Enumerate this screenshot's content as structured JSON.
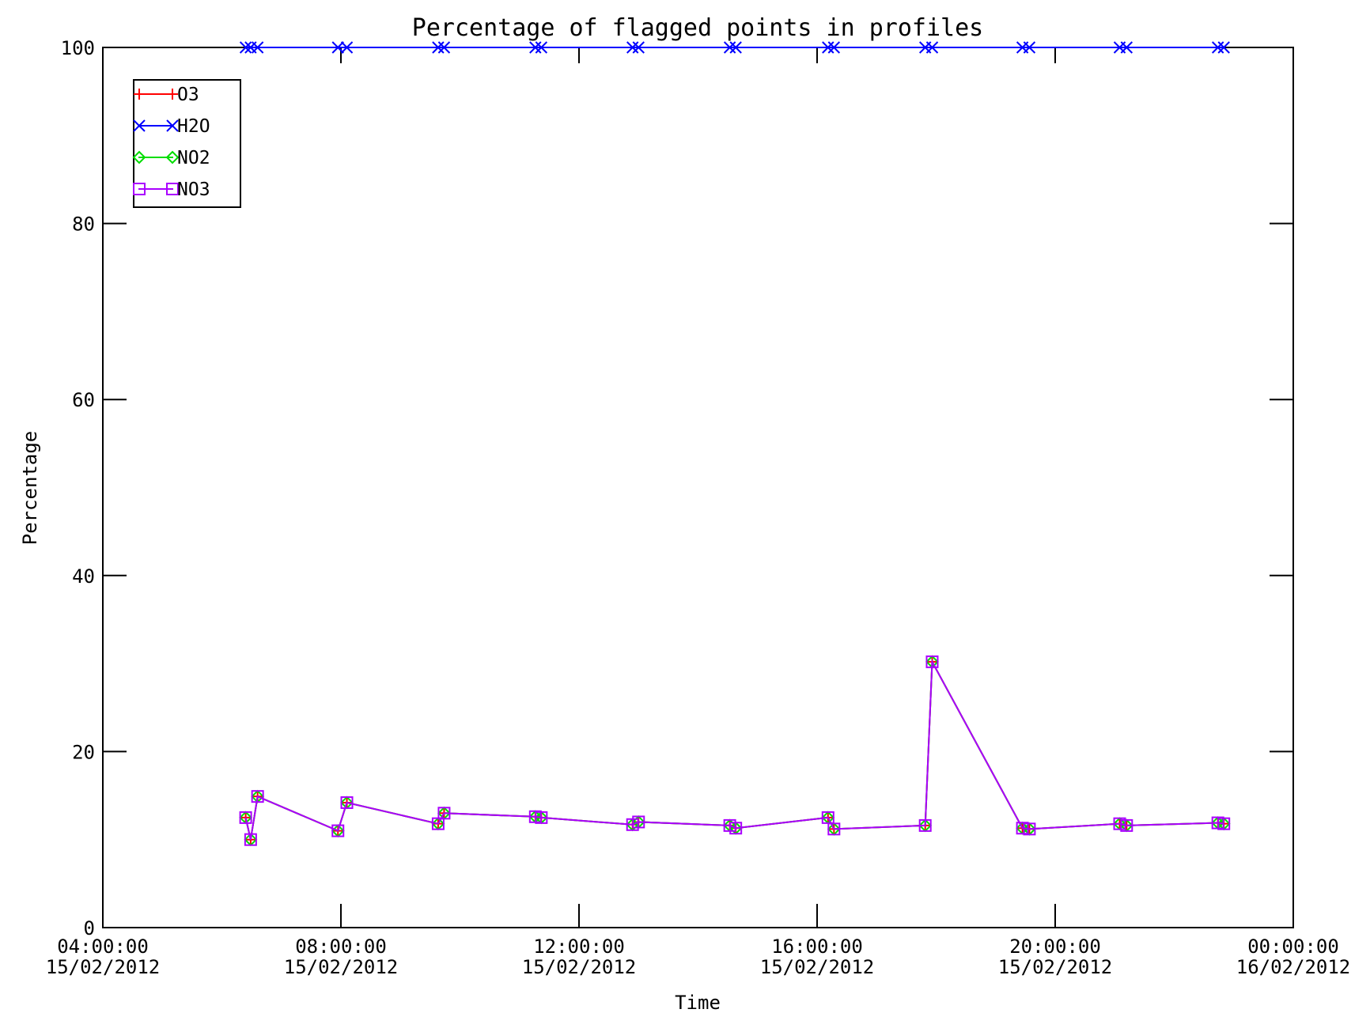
{
  "chart_data": {
    "type": "line",
    "title": "Percentage of flagged points in profiles",
    "xlabel": "Time",
    "ylabel": "Percentage",
    "xlim": [
      "15/02/2012 04:00",
      "16/02/2012 00:00"
    ],
    "ylim": [
      0,
      100
    ],
    "grid": false,
    "legend_position": "top-left",
    "x_ticks": [
      {
        "time": "15/02/2012 04:00",
        "line1": "04:00:00",
        "line2": "15/02/2012"
      },
      {
        "time": "15/02/2012 08:00",
        "line1": "08:00:00",
        "line2": "15/02/2012"
      },
      {
        "time": "15/02/2012 12:00",
        "line1": "12:00:00",
        "line2": "15/02/2012"
      },
      {
        "time": "15/02/2012 16:00",
        "line1": "16:00:00",
        "line2": "15/02/2012"
      },
      {
        "time": "15/02/2012 20:00",
        "line1": "20:00:00",
        "line2": "15/02/2012"
      },
      {
        "time": "16/02/2012 00:00",
        "line1": "00:00:00",
        "line2": "16/02/2012"
      }
    ],
    "y_ticks": [
      0,
      20,
      40,
      60,
      80,
      100
    ],
    "x": [
      "15/02/2012 06:24",
      "15/02/2012 06:29",
      "15/02/2012 06:36",
      "15/02/2012 07:57",
      "15/02/2012 08:06",
      "15/02/2012 09:38",
      "15/02/2012 09:44",
      "15/02/2012 11:16",
      "15/02/2012 11:22",
      "15/02/2012 12:54",
      "15/02/2012 13:00",
      "15/02/2012 14:32",
      "15/02/2012 14:38",
      "15/02/2012 16:11",
      "15/02/2012 16:17",
      "15/02/2012 17:49",
      "15/02/2012 17:56",
      "15/02/2012 19:27",
      "15/02/2012 19:34",
      "15/02/2012 21:05",
      "15/02/2012 21:12",
      "15/02/2012 22:44",
      "15/02/2012 22:50"
    ],
    "series": [
      {
        "name": "O3",
        "color": "#ff0000",
        "marker": "plus",
        "values": [
          12.5,
          10.0,
          14.9,
          11.0,
          14.2,
          11.8,
          13.0,
          12.6,
          12.5,
          11.7,
          12.0,
          11.6,
          11.3,
          12.5,
          11.2,
          11.6,
          30.2,
          11.3,
          11.2,
          11.8,
          11.6,
          11.9,
          11.8
        ]
      },
      {
        "name": "H2O",
        "color": "#0000ff",
        "marker": "x",
        "values": [
          100,
          100,
          100,
          100,
          100,
          100,
          100,
          100,
          100,
          100,
          100,
          100,
          100,
          100,
          100,
          100,
          100,
          100,
          100,
          100,
          100,
          100,
          100
        ]
      },
      {
        "name": "NO2",
        "color": "#00dd00",
        "marker": "diamond",
        "values": [
          12.5,
          10.0,
          14.9,
          11.0,
          14.2,
          11.8,
          13.0,
          12.6,
          12.5,
          11.7,
          12.0,
          11.6,
          11.3,
          12.5,
          11.2,
          11.6,
          30.2,
          11.3,
          11.2,
          11.8,
          11.6,
          11.9,
          11.8
        ]
      },
      {
        "name": "NO3",
        "color": "#aa00ff",
        "marker": "square",
        "values": [
          12.5,
          10.0,
          14.9,
          11.0,
          14.2,
          11.8,
          13.0,
          12.6,
          12.5,
          11.7,
          12.0,
          11.6,
          11.3,
          12.5,
          11.2,
          11.6,
          30.2,
          11.3,
          11.2,
          11.8,
          11.6,
          11.9,
          11.8
        ]
      }
    ]
  }
}
